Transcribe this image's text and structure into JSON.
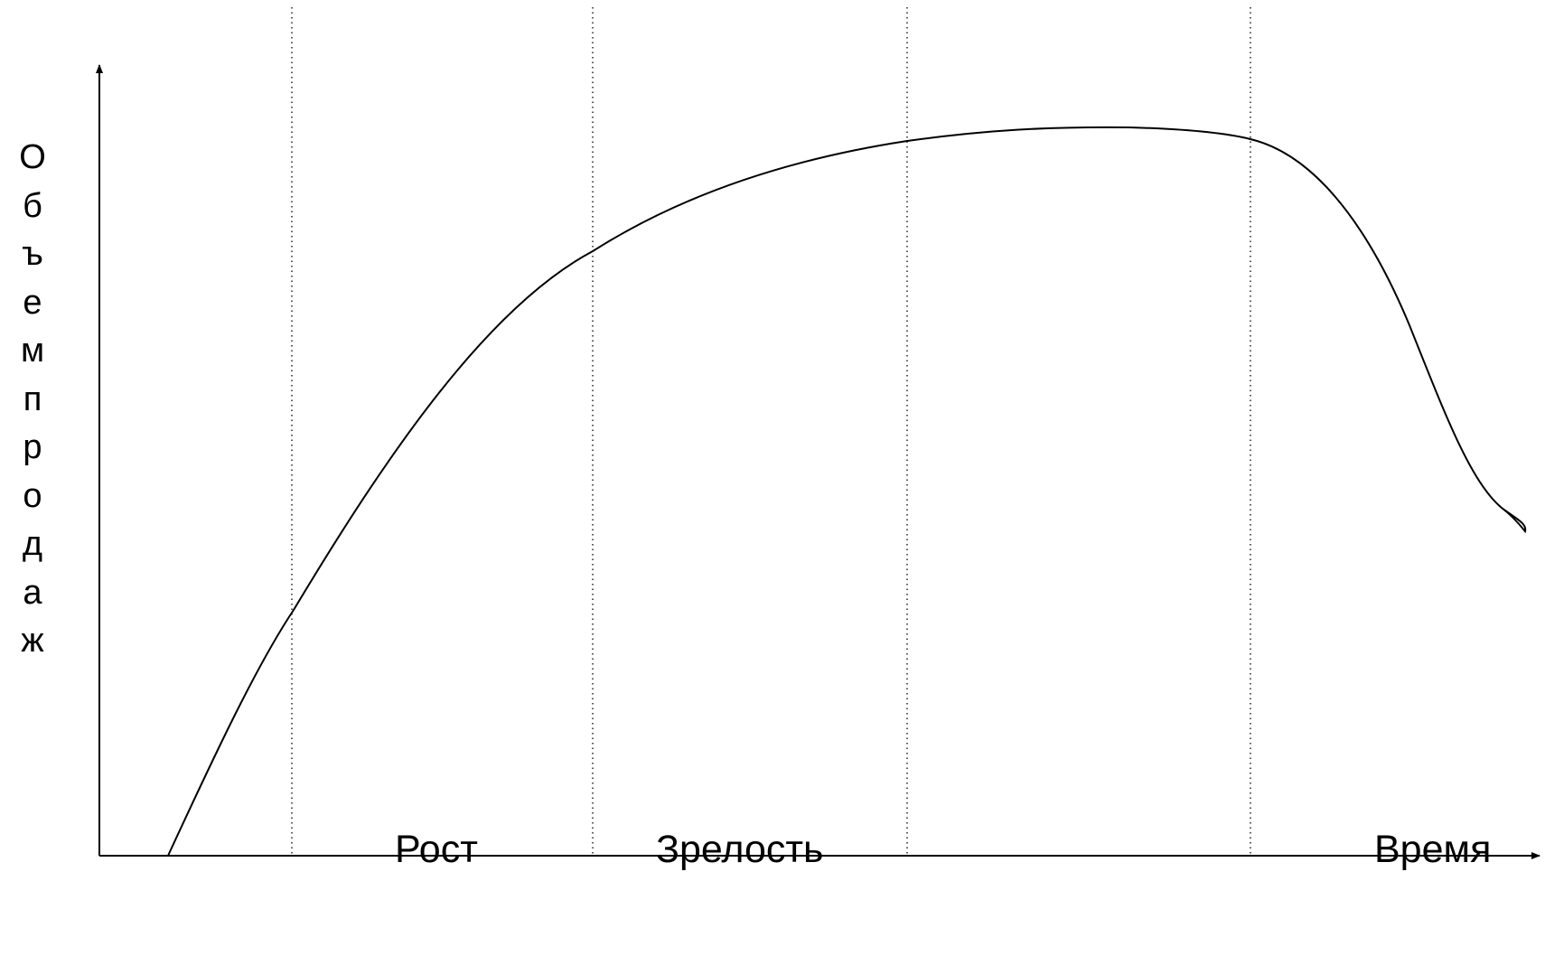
{
  "y_axis": {
    "label": "Объем продаж"
  },
  "x_axis": {
    "label": "Время"
  },
  "stages": [
    {
      "label": "Рост"
    },
    {
      "label": "Зрелость"
    }
  ],
  "style": {
    "line_color": "#000000",
    "background": "#ffffff"
  }
}
